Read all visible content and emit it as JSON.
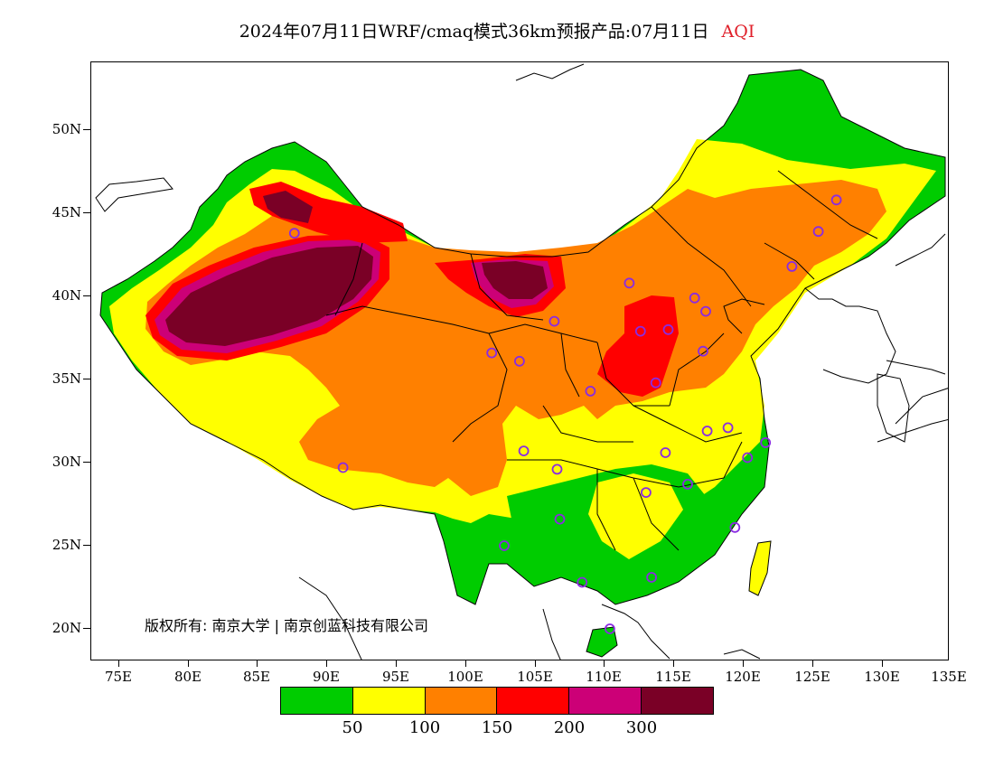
{
  "title": {
    "main": "2024年07月11日WRF/cmaq模式36km预报产品:07月11日",
    "product": "AQI"
  },
  "axes": {
    "lat_labels": [
      "50N",
      "45N",
      "40N",
      "35N",
      "30N",
      "25N",
      "20N"
    ],
    "lon_labels": [
      "75E",
      "80E",
      "85E",
      "90E",
      "95E",
      "100E",
      "105E",
      "110E",
      "115E",
      "120E",
      "125E",
      "130E",
      "135E"
    ]
  },
  "copyright": "版权所有: 南京大学 | 南京创蓝科技有限公司",
  "legend": {
    "colors": [
      "#00cc00",
      "#ffff00",
      "#ff8000",
      "#ff0000",
      "#cc0077",
      "#7a0026"
    ],
    "labels": [
      "50",
      "100",
      "150",
      "200",
      "300"
    ]
  },
  "colors": {
    "marker": "#8a2be2",
    "coast": "#000000"
  },
  "chart_data": {
    "type": "heatmap",
    "variable": "AQI",
    "lon_range": [
      73,
      135
    ],
    "lat_range": [
      18,
      54
    ],
    "cities": [
      {
        "lon": 87.6,
        "lat": 43.8
      },
      {
        "lon": 91.1,
        "lat": 29.7
      },
      {
        "lon": 101.8,
        "lat": 36.6
      },
      {
        "lon": 103.8,
        "lat": 36.1
      },
      {
        "lon": 106.3,
        "lat": 38.5
      },
      {
        "lon": 111.7,
        "lat": 40.8
      },
      {
        "lon": 112.5,
        "lat": 37.9
      },
      {
        "lon": 114.5,
        "lat": 38.0
      },
      {
        "lon": 116.4,
        "lat": 39.9
      },
      {
        "lon": 117.2,
        "lat": 39.1
      },
      {
        "lon": 117.0,
        "lat": 36.7
      },
      {
        "lon": 113.6,
        "lat": 34.8
      },
      {
        "lon": 108.9,
        "lat": 34.3
      },
      {
        "lon": 104.1,
        "lat": 30.7
      },
      {
        "lon": 106.5,
        "lat": 29.6
      },
      {
        "lon": 114.3,
        "lat": 30.6
      },
      {
        "lon": 117.3,
        "lat": 31.9
      },
      {
        "lon": 118.8,
        "lat": 32.1
      },
      {
        "lon": 120.2,
        "lat": 30.3
      },
      {
        "lon": 121.5,
        "lat": 31.2
      },
      {
        "lon": 112.9,
        "lat": 28.2
      },
      {
        "lon": 115.9,
        "lat": 28.7
      },
      {
        "lon": 119.3,
        "lat": 26.1
      },
      {
        "lon": 106.7,
        "lat": 26.6
      },
      {
        "lon": 102.7,
        "lat": 25.0
      },
      {
        "lon": 108.3,
        "lat": 22.8
      },
      {
        "lon": 113.3,
        "lat": 23.1
      },
      {
        "lon": 110.3,
        "lat": 20.0
      },
      {
        "lon": 123.4,
        "lat": 41.8
      },
      {
        "lon": 125.3,
        "lat": 43.9
      },
      {
        "lon": 126.6,
        "lat": 45.8
      }
    ]
  }
}
